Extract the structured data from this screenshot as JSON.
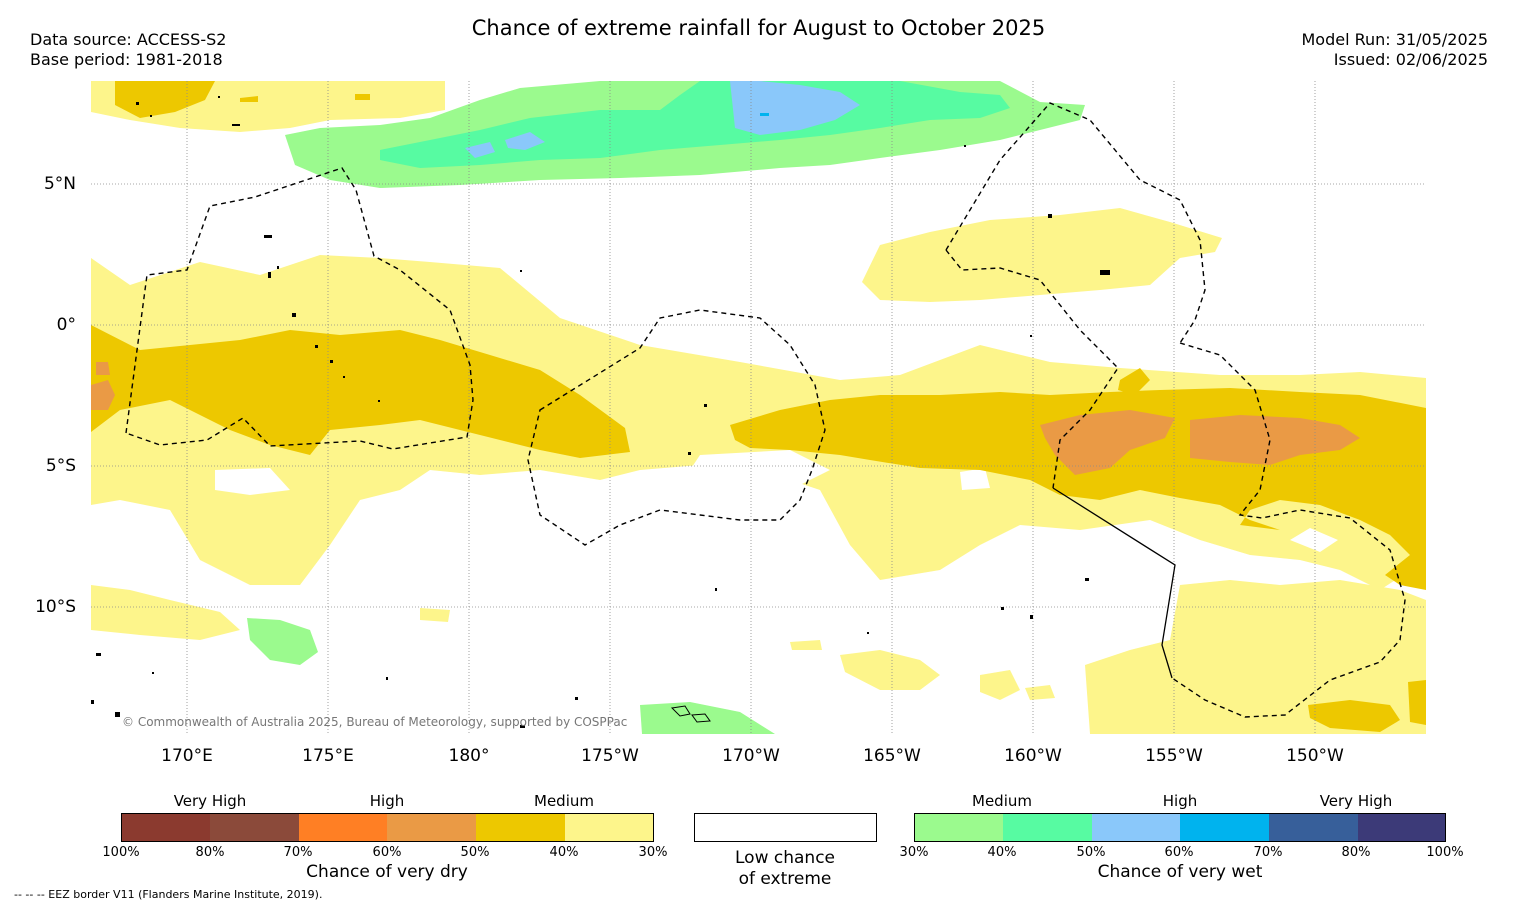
{
  "title": "Chance of extreme rainfall for August to October 2025",
  "meta": {
    "data_source": "Data source: ACCESS-S2",
    "base_period": "Base period: 1981-2018",
    "model_run": "Model Run: 31/05/2025",
    "issued": "Issued: 02/06/2025"
  },
  "map": {
    "lat_labels": [
      "5°N",
      "0°",
      "5°S",
      "10°S"
    ],
    "lon_labels": [
      "170°E",
      "175°E",
      "180°",
      "175°W",
      "170°W",
      "165°W",
      "160°W",
      "155°W",
      "150°W"
    ],
    "copyright": "© Commonwealth of Australia 2025, Bureau of Meteorology, supported by COSPPac",
    "colors": {
      "dry_medium_low": "#fdf58b",
      "dry_medium_high": "#edc800",
      "dry_high_low": "#ea9a45",
      "wet_medium_low": "#9bfa8e",
      "wet_medium_high": "#57fba2",
      "wet_high_low": "#8ac8fa",
      "wet_high_high": "#00b3ee"
    }
  },
  "legend": {
    "dry": {
      "categories": [
        "Very High",
        "High",
        "Medium"
      ],
      "ticks": [
        "100%",
        "80%",
        "70%",
        "60%",
        "50%",
        "40%",
        "30%"
      ],
      "colors": [
        "#8b3a2f",
        "#8b4a3a",
        "#ff7f24",
        "#ea9a45",
        "#edc800",
        "#fdf58b"
      ],
      "title": "Chance of very dry"
    },
    "neutral": {
      "title_line1": "Low chance",
      "title_line2": "of extreme"
    },
    "wet": {
      "categories": [
        "Medium",
        "High",
        "Very High"
      ],
      "ticks": [
        "30%",
        "40%",
        "50%",
        "60%",
        "70%",
        "80%",
        "100%"
      ],
      "colors": [
        "#9bfa8e",
        "#57fba2",
        "#8ac8fa",
        "#00b3ee",
        "#375f9a",
        "#3c3a78"
      ],
      "title": "Chance of very wet"
    },
    "eez_note": "-- -- -- EEZ border V11 (Flanders Marine Institute, 2019)."
  }
}
